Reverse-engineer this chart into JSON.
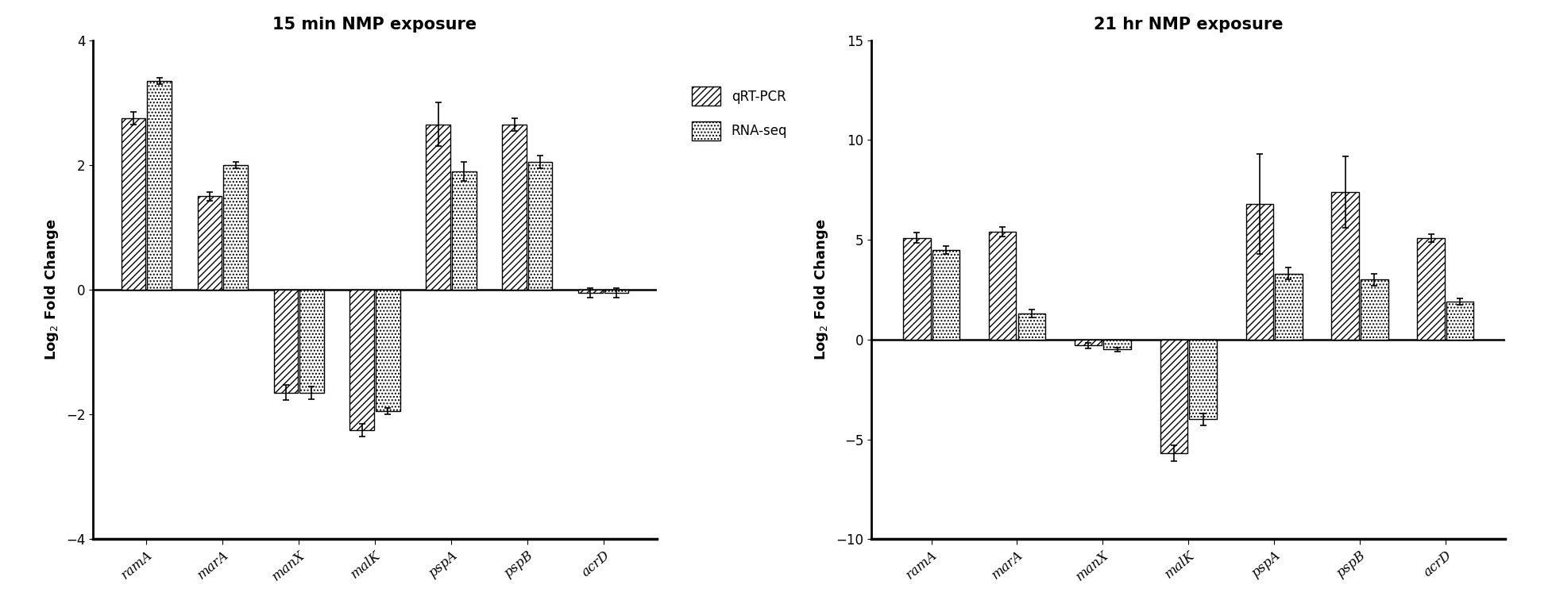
{
  "title_left": "15 min NMP exposure",
  "title_right": "21 hr NMP exposure",
  "ylabel": "Log$_2$ Fold Change",
  "categories": [
    "ramA",
    "marA",
    "manX",
    "malK",
    "pspA",
    "pspB",
    "acrD"
  ],
  "left": {
    "qrt_pcr": [
      2.75,
      1.5,
      -1.65,
      -2.25,
      2.65,
      2.65,
      -0.05
    ],
    "rna_seq": [
      3.35,
      2.0,
      -1.65,
      -1.95,
      1.9,
      2.05,
      -0.05
    ],
    "qrt_err": [
      0.1,
      0.07,
      0.12,
      0.1,
      0.35,
      0.1,
      0.08
    ],
    "rna_err": [
      0.05,
      0.05,
      0.1,
      0.05,
      0.15,
      0.1,
      0.08
    ],
    "ylim": [
      -4,
      4
    ],
    "yticks": [
      -4,
      -2,
      0,
      2,
      4
    ]
  },
  "right": {
    "qrt_pcr": [
      5.1,
      5.4,
      -0.3,
      -5.7,
      6.8,
      7.4,
      5.1
    ],
    "rna_seq": [
      4.5,
      1.3,
      -0.5,
      -4.0,
      3.3,
      3.0,
      1.9
    ],
    "qrt_err": [
      0.25,
      0.25,
      0.15,
      0.4,
      2.5,
      1.8,
      0.2
    ],
    "rna_err": [
      0.2,
      0.2,
      0.1,
      0.3,
      0.3,
      0.3,
      0.15
    ],
    "ylim": [
      -10,
      15
    ],
    "yticks": [
      -10,
      -5,
      0,
      5,
      10,
      15
    ]
  },
  "bar_width": 0.32,
  "hatch_qrt": "////",
  "hatch_rna": "....",
  "legend_labels": [
    "qRT-PCR",
    "RNA-seq"
  ],
  "title_fontsize": 15,
  "label_fontsize": 13,
  "tick_fontsize": 12,
  "legend_fontsize": 12,
  "bar_edge_color": "black",
  "bar_face_color": "white"
}
